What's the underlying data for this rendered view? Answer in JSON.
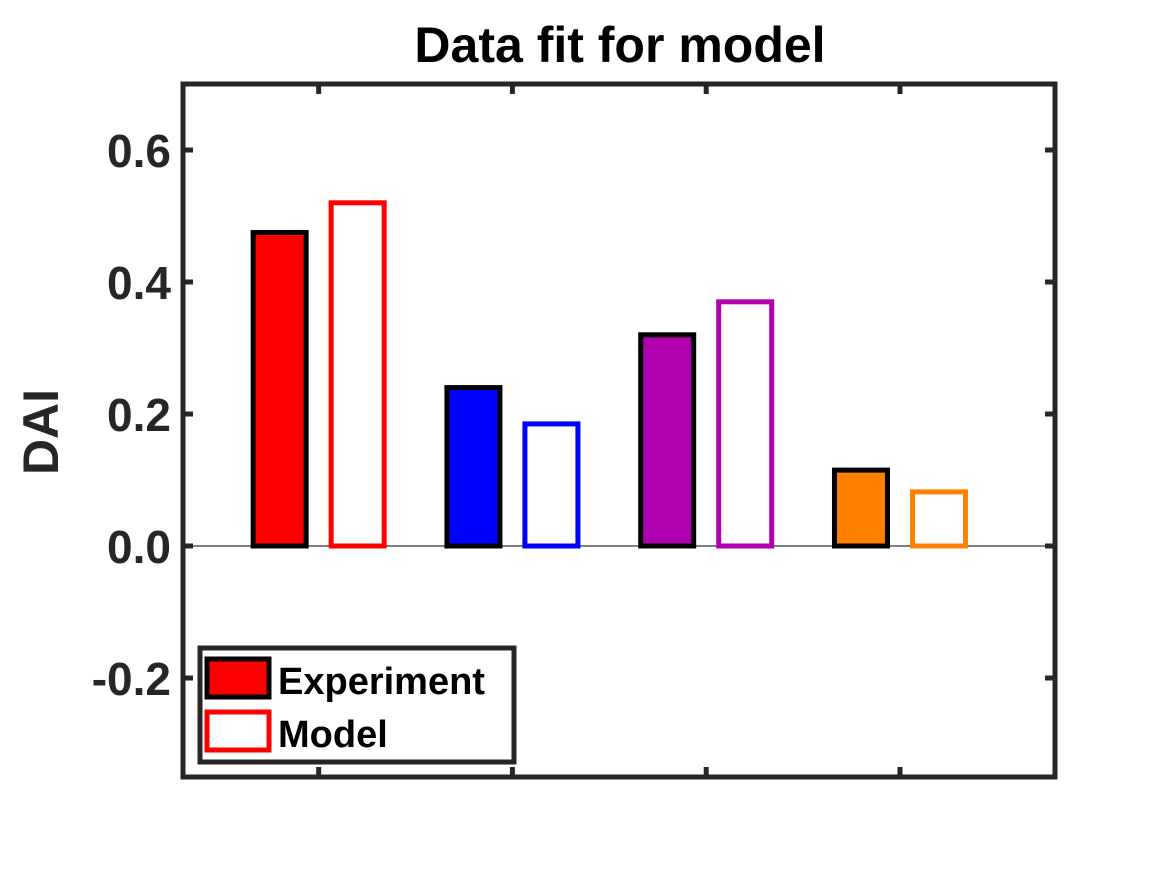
{
  "chart_data": {
    "type": "bar",
    "title": "Data fit for model",
    "xlabel": "",
    "ylabel": "DAI",
    "ylim": [
      -0.35,
      0.7
    ],
    "yticks": [
      -0.2,
      0.0,
      0.2,
      0.4,
      0.6
    ],
    "ytick_labels": [
      "-0.2",
      "0.0",
      "0.2",
      "0.4",
      "0.6"
    ],
    "grid": false,
    "legend_position": "bottom-left",
    "categories": [
      "",
      "",
      "",
      ""
    ],
    "group_colors": [
      "#ff0000",
      "#0000ff",
      "#b000b0",
      "#ff8000"
    ],
    "series": [
      {
        "name": "Experiment",
        "style": "filled",
        "outline_color": "#000000",
        "values": [
          0.475,
          0.24,
          0.32,
          0.115
        ]
      },
      {
        "name": "Model",
        "style": "outline",
        "values": [
          0.52,
          0.185,
          0.37,
          0.082
        ]
      }
    ]
  }
}
